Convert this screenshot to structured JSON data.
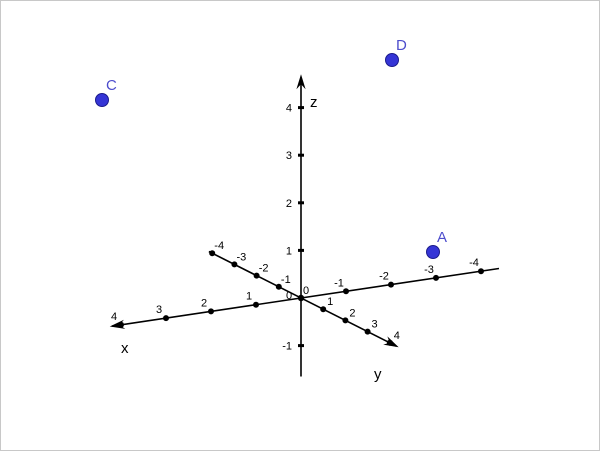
{
  "axes": {
    "x": {
      "name": "x",
      "ticks": [
        "-4",
        "-3",
        "-2",
        "-1",
        "1",
        "2",
        "3",
        "4"
      ]
    },
    "y": {
      "name": "y",
      "ticks": [
        "-4",
        "-3",
        "-2",
        "-1",
        "1",
        "2",
        "3",
        "4"
      ]
    },
    "z": {
      "name": "z",
      "ticks": [
        "-1",
        "1",
        "2",
        "3",
        "4"
      ]
    },
    "origin_labels": [
      "0",
      "0"
    ]
  },
  "colors": {
    "axis": "#000000",
    "point_fill": "#3535d6",
    "point_stroke": "#1c1c8c",
    "point_label": "#4d4dcc"
  },
  "points": [
    {
      "label": "A"
    },
    {
      "label": "C"
    },
    {
      "label": "D"
    }
  ]
}
